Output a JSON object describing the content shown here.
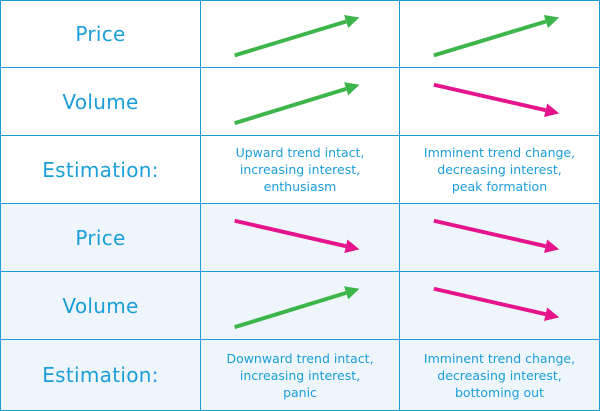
{
  "colors": {
    "up": "#3cb54a",
    "down": "#e6148c",
    "text": "#1a9ed9",
    "grid": "#1a9ed9"
  },
  "sections": [
    {
      "price_label": "Price",
      "price_trends": [
        "up",
        "up"
      ],
      "volume_label": "Volume",
      "volume_trends": [
        "up",
        "down"
      ],
      "estimation_label": "Estimation:",
      "estimations": [
        {
          "lines": [
            "Upward trend intact,",
            "increasing interest,",
            "enthusiasm"
          ]
        },
        {
          "lines": [
            "Imminent trend change,",
            "decreasing interest,",
            "peak formation"
          ]
        }
      ]
    },
    {
      "price_label": "Price",
      "price_trends": [
        "down",
        "down"
      ],
      "volume_label": "Volume",
      "volume_trends": [
        "up",
        "down"
      ],
      "estimation_label": "Estimation:",
      "estimations": [
        {
          "lines": [
            "Downward trend intact,",
            "increasing interest,",
            "panic"
          ]
        },
        {
          "lines": [
            "Imminent trend change,",
            "decreasing interest,",
            "bottoming out"
          ]
        }
      ]
    }
  ]
}
